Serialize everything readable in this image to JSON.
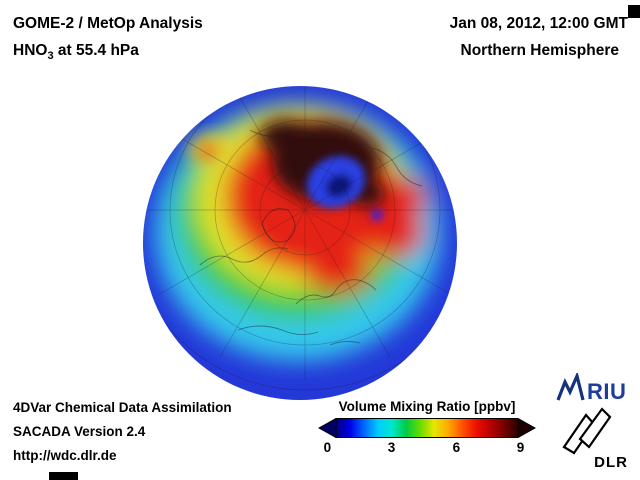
{
  "header": {
    "title": "GOME-2 / MetOp Analysis",
    "species": "HNO",
    "species_sub": "3",
    "level": " at 55.4 hPa",
    "datetime": "Jan 08, 2012, 12:00 GMT",
    "hemisphere": "Northern Hemisphere"
  },
  "footer": {
    "line1": "4DVar Chemical Data Assimilation",
    "line2": "SACADA Version 2.4",
    "line3": "http://wdc.dlr.de"
  },
  "colorbar": {
    "label": "Volume Mixing Ratio [ppbv]",
    "ticks": [
      "0",
      "3",
      "6",
      "9"
    ],
    "tick_positions_pct": [
      4.3,
      33.7,
      63.5,
      92.9
    ],
    "colors": [
      "#000080",
      "#0000e6",
      "#0066ff",
      "#00ccff",
      "#00e6cc",
      "#00cc44",
      "#66dd00",
      "#e6e600",
      "#ffaa00",
      "#ff5500",
      "#ee1100",
      "#bb0000",
      "#770000",
      "#2a0000"
    ],
    "left_arrow_color": "#000060",
    "right_arrow_color": "#1a0000"
  },
  "logos": {
    "riu": "RIU",
    "dlr": "DLR"
  }
}
